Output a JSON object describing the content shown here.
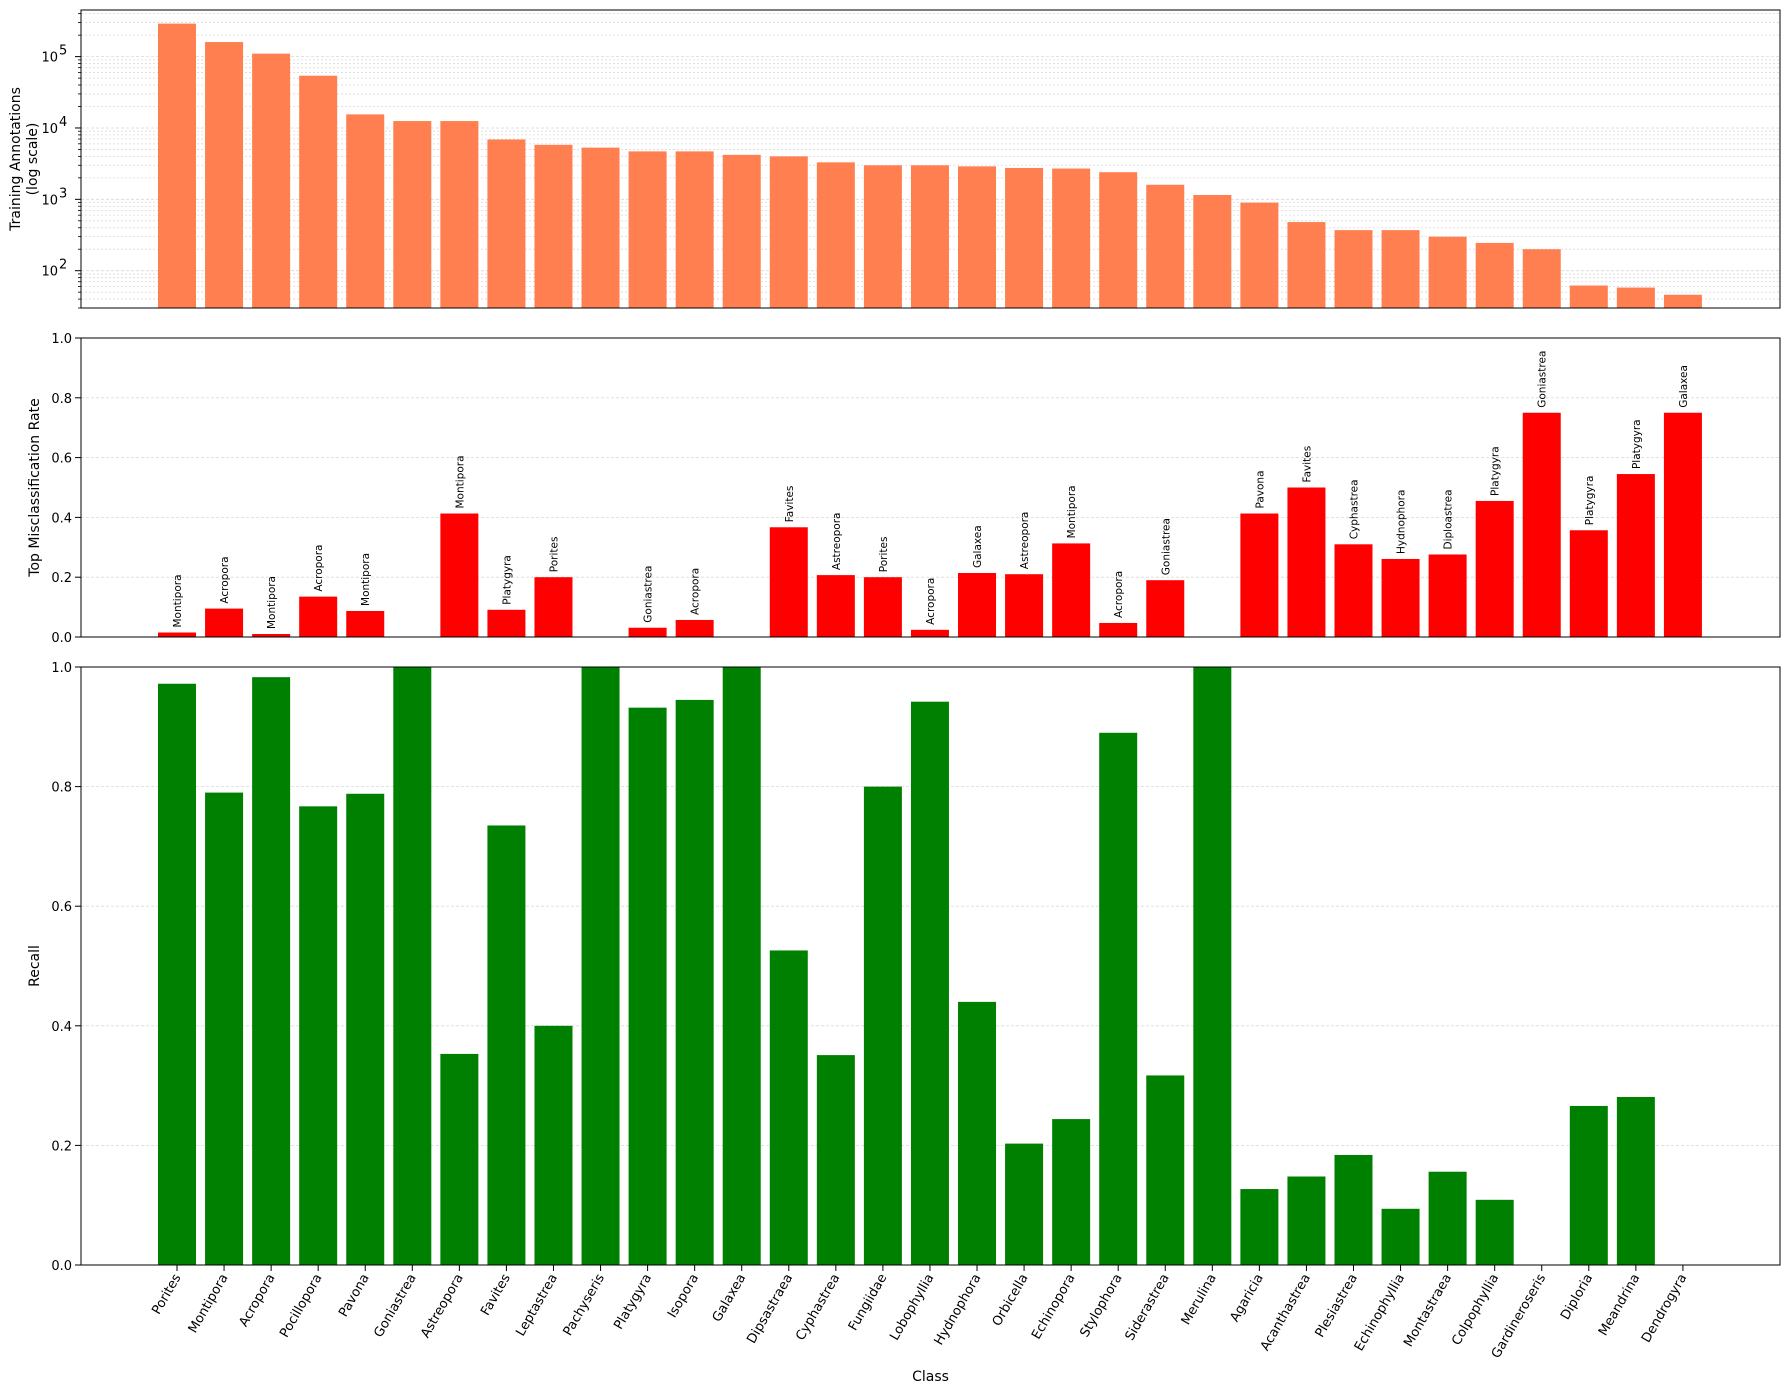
{
  "chart_data": [
    {
      "type": "bar",
      "ylabel": "Training Annotations",
      "ylabel_sub": "(log scale)",
      "yscale": "log",
      "ylim": [
        30,
        450000
      ],
      "yticks": [
        {
          "value": 100,
          "base": "10",
          "exp": "2"
        },
        {
          "value": 1000,
          "base": "10",
          "exp": "3"
        },
        {
          "value": 10000,
          "base": "10",
          "exp": "4"
        },
        {
          "value": 100000,
          "base": "10",
          "exp": "5"
        }
      ],
      "grid": true,
      "bar_color": "#ff7f50",
      "values": [
        290000,
        160000,
        110000,
        54000,
        15500,
        12500,
        12500,
        6900,
        5800,
        5300,
        4700,
        4700,
        4200,
        4000,
        3300,
        3000,
        3000,
        2900,
        2750,
        2700,
        2400,
        1600,
        1150,
        900,
        480,
        370,
        370,
        300,
        245,
        200,
        62,
        58,
        46
      ]
    },
    {
      "type": "bar",
      "ylabel": "Top Misclassification Rate",
      "ylim": [
        0,
        1
      ],
      "yticks": [
        "0.0",
        "0.2",
        "0.4",
        "0.6",
        "0.8",
        "1.0"
      ],
      "grid": true,
      "bar_color": "#ff0000",
      "values": [
        0.015,
        0.095,
        0.01,
        0.135,
        0.087,
        0,
        0.413,
        0.091,
        0.2,
        0,
        0.031,
        0.057,
        0,
        0.367,
        0.207,
        0.2,
        0.024,
        0.214,
        0.21,
        0.313,
        0.047,
        0.19,
        0,
        0.413,
        0.5,
        0.31,
        0.261,
        0.276,
        0.455,
        0.75,
        0.357,
        0.545,
        0.75
      ],
      "annotations": [
        "Montipora",
        "Acropora",
        "Montipora",
        "Acropora",
        "Montipora",
        "",
        "Montipora",
        "Platygyra",
        "Porites",
        "",
        "Goniastrea",
        "Acropora",
        "",
        "Favites",
        "Astreopora",
        "Porites",
        "Acropora",
        "Galaxea",
        "Astreopora",
        "Montipora",
        "Acropora",
        "Goniastrea",
        "",
        "Pavona",
        "Favites",
        "Cyphastrea",
        "Hydnophora",
        "Diploastrea",
        "Platygyra",
        "Goniastrea",
        "Platygyra",
        "Platygyra",
        "Galaxea"
      ]
    },
    {
      "type": "bar",
      "xlabel": "Class",
      "ylabel": "Recall",
      "ylim": [
        0,
        1
      ],
      "yticks": [
        "0.0",
        "0.2",
        "0.4",
        "0.6",
        "0.8",
        "1.0"
      ],
      "grid": true,
      "bar_color": "#008000",
      "categories": [
        "Porites",
        "Montipora",
        "Acropora",
        "Pocillopora",
        "Pavona",
        "Goniastrea",
        "Astreopora",
        "Favites",
        "Leptastrea",
        "Pachyseris",
        "Platygyra",
        "Isopora",
        "Galaxea",
        "Dipsastraea",
        "Cyphastrea",
        "Fungiidae",
        "Lobophyllia",
        "Hydnophora",
        "Orbicella",
        "Echinopora",
        "Stylophora",
        "Siderastrea",
        "Merulina",
        "Agaricia",
        "Acanthastrea",
        "Plesiastrea",
        "Echinophyllia",
        "Montastraea",
        "Colpophyllia",
        "Gardineroseris",
        "Diploria",
        "Meandrina",
        "Dendrogyra"
      ],
      "values": [
        0.972,
        0.79,
        0.983,
        0.767,
        0.788,
        1.0,
        0.353,
        0.735,
        0.4,
        1.0,
        0.932,
        0.945,
        1.0,
        0.526,
        0.351,
        0.8,
        0.942,
        0.44,
        0.203,
        0.244,
        0.89,
        0.317,
        1.0,
        0.127,
        0.148,
        0.184,
        0.094,
        0.156,
        0.109,
        0,
        0.266,
        0.281,
        0
      ]
    }
  ]
}
